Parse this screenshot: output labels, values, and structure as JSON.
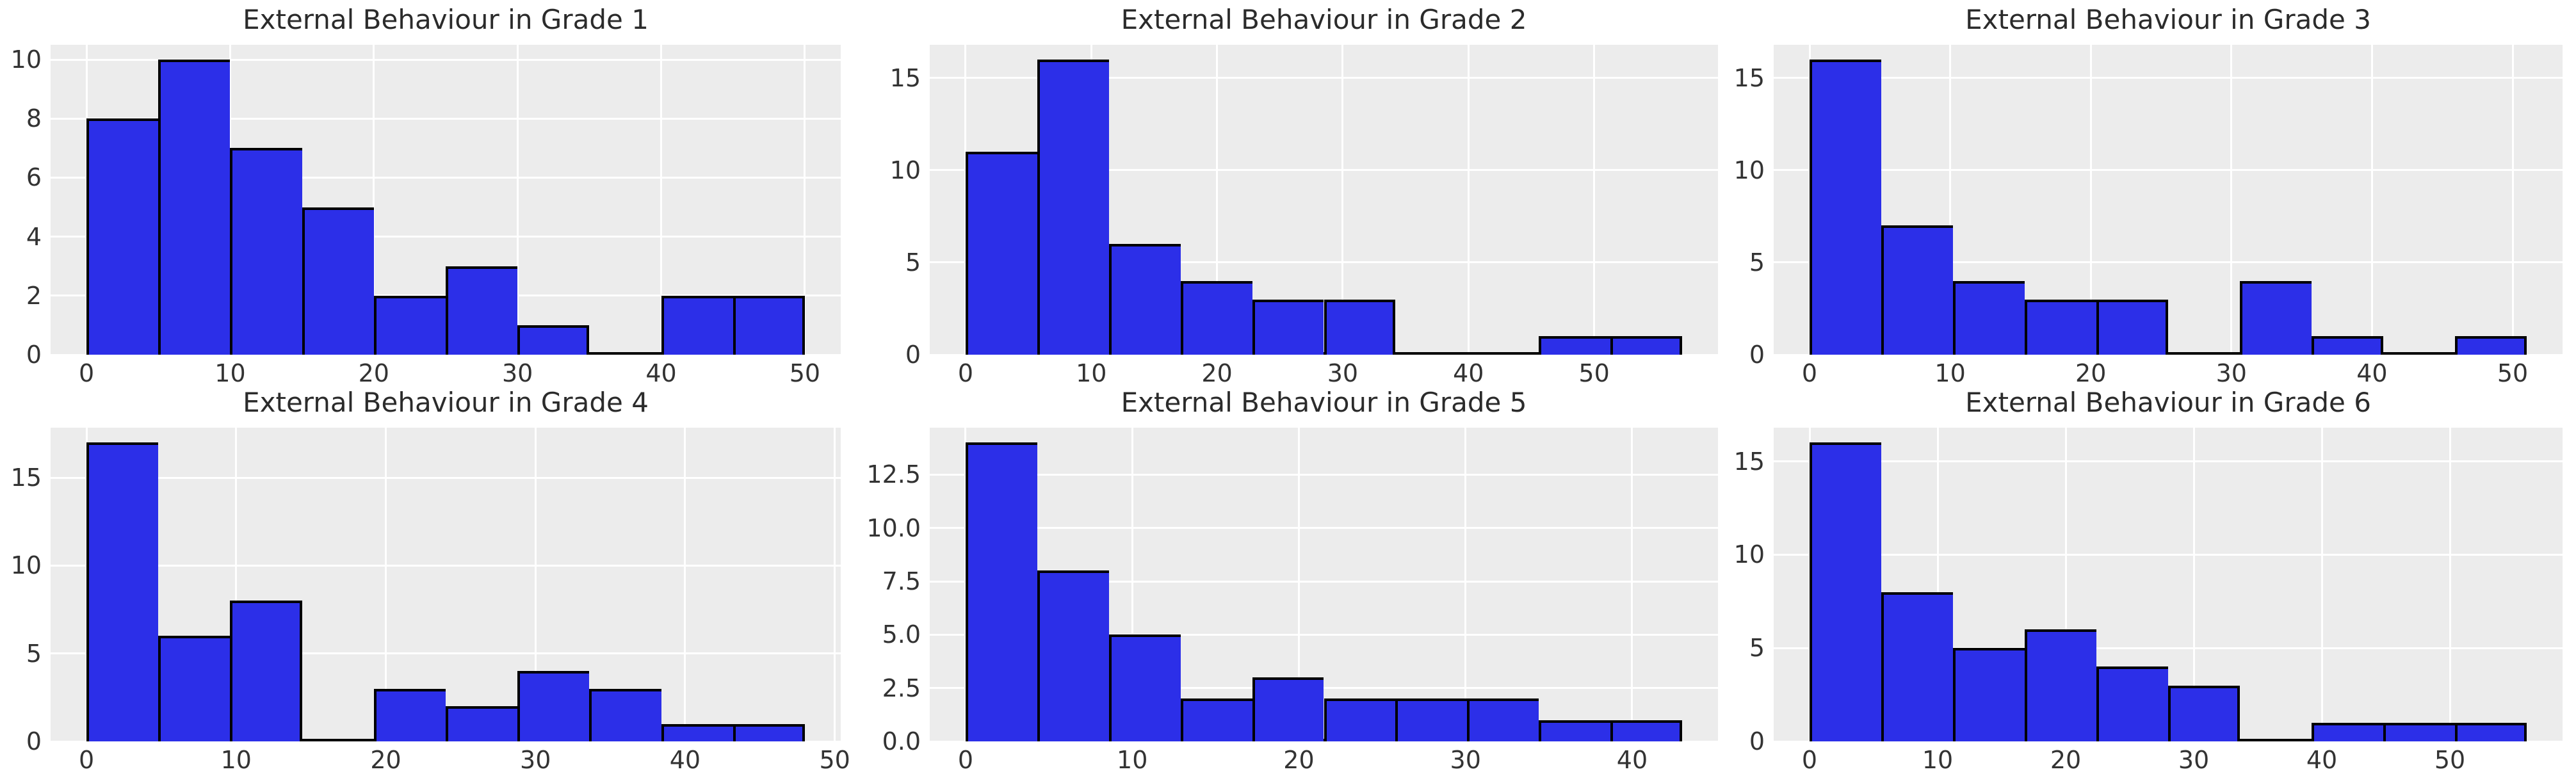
{
  "figure": {
    "colors": {
      "background": "#ffffff",
      "panel": "#ececec",
      "grid": "#ffffff",
      "bar_fill": "#2c2fe8",
      "bar_edge": "#000000",
      "title_text": "#2b2b2b",
      "tick_text": "#333333"
    }
  },
  "chart_data": [
    {
      "type": "bar",
      "subtype": "histogram",
      "title": "External Behaviour in Grade 1",
      "bins": {
        "start": 0,
        "width": 5.0,
        "end": 50
      },
      "counts": [
        8,
        10,
        7,
        5,
        2,
        3,
        1,
        0,
        2,
        2
      ],
      "xlim": [
        -2.5,
        52.5
      ],
      "ylim": [
        0,
        10.5
      ],
      "xtick_values": [
        0,
        10,
        20,
        30,
        40,
        50
      ],
      "xtick_labels": [
        "0",
        "10",
        "20",
        "30",
        "40",
        "50"
      ],
      "ytick_values": [
        0,
        2,
        4,
        6,
        8,
        10
      ],
      "ytick_labels": [
        "0",
        "2",
        "4",
        "6",
        "8",
        "10"
      ],
      "grid": true,
      "legend": false
    },
    {
      "type": "bar",
      "subtype": "histogram",
      "title": "External Behaviour in Grade 2",
      "bins": {
        "start": 0,
        "width": 5.7,
        "end": 57
      },
      "counts": [
        11,
        16,
        6,
        4,
        3,
        3,
        0,
        0,
        1,
        1
      ],
      "xlim": [
        -2.85,
        59.85
      ],
      "ylim": [
        0,
        16.8
      ],
      "xtick_values": [
        0,
        10,
        20,
        30,
        40,
        50
      ],
      "xtick_labels": [
        "0",
        "10",
        "20",
        "30",
        "40",
        "50"
      ],
      "ytick_values": [
        0,
        5,
        10,
        15
      ],
      "ytick_labels": [
        "0",
        "5",
        "10",
        "15"
      ],
      "grid": true,
      "legend": false
    },
    {
      "type": "bar",
      "subtype": "histogram",
      "title": "External Behaviour in Grade 3",
      "bins": {
        "start": 0,
        "width": 5.1,
        "end": 51
      },
      "counts": [
        16,
        7,
        4,
        3,
        3,
        0,
        4,
        1,
        0,
        1
      ],
      "xlim": [
        -2.55,
        53.55
      ],
      "ylim": [
        0,
        16.8
      ],
      "xtick_values": [
        0,
        10,
        20,
        30,
        40,
        50
      ],
      "xtick_labels": [
        "0",
        "10",
        "20",
        "30",
        "40",
        "50"
      ],
      "ytick_values": [
        0,
        5,
        10,
        15
      ],
      "ytick_labels": [
        "0",
        "5",
        "10",
        "15"
      ],
      "grid": true,
      "legend": false
    },
    {
      "type": "bar",
      "subtype": "histogram",
      "title": "External Behaviour in Grade 4",
      "bins": {
        "start": 0,
        "width": 4.8,
        "end": 48
      },
      "counts": [
        17,
        6,
        8,
        0,
        3,
        2,
        4,
        3,
        1,
        1
      ],
      "xlim": [
        -2.4,
        50.4
      ],
      "ylim": [
        0,
        17.85
      ],
      "xtick_values": [
        0,
        10,
        20,
        30,
        40,
        50
      ],
      "xtick_labels": [
        "0",
        "10",
        "20",
        "30",
        "40",
        "50"
      ],
      "ytick_values": [
        0,
        5,
        10,
        15
      ],
      "ytick_labels": [
        "0",
        "5",
        "10",
        "15"
      ],
      "grid": true,
      "legend": false
    },
    {
      "type": "bar",
      "subtype": "histogram",
      "title": "External Behaviour in Grade 5",
      "bins": {
        "start": 0,
        "width": 4.3,
        "end": 43
      },
      "counts": [
        14,
        8,
        5,
        2,
        3,
        2,
        2,
        2,
        1,
        1
      ],
      "xlim": [
        -2.15,
        45.15
      ],
      "ylim": [
        0,
        14.7
      ],
      "xtick_values": [
        0,
        10,
        20,
        30,
        40
      ],
      "xtick_labels": [
        "0",
        "10",
        "20",
        "30",
        "40"
      ],
      "ytick_values": [
        0,
        2.5,
        5,
        7.5,
        10,
        12.5
      ],
      "ytick_labels": [
        "0.0",
        "2.5",
        "5.0",
        "7.5",
        "10.0",
        "12.5"
      ],
      "grid": true,
      "legend": false
    },
    {
      "type": "bar",
      "subtype": "histogram",
      "title": "External Behaviour in Grade 6",
      "bins": {
        "start": 0,
        "width": 5.6,
        "end": 56
      },
      "counts": [
        16,
        8,
        5,
        6,
        4,
        3,
        0,
        1,
        1,
        1
      ],
      "xlim": [
        -2.8,
        58.8
      ],
      "ylim": [
        0,
        16.8
      ],
      "xtick_values": [
        0,
        10,
        20,
        30,
        40,
        50
      ],
      "xtick_labels": [
        "0",
        "10",
        "20",
        "30",
        "40",
        "50"
      ],
      "ytick_values": [
        0,
        5,
        10,
        15
      ],
      "ytick_labels": [
        "0",
        "5",
        "10",
        "15"
      ],
      "grid": true,
      "legend": false
    }
  ]
}
